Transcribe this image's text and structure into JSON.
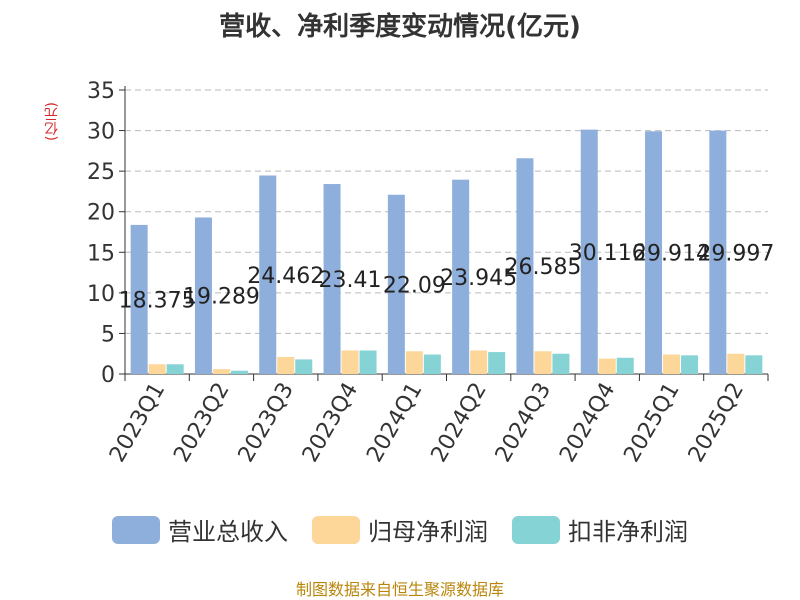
{
  "chart_data": {
    "type": "bar",
    "title": "营收、净利季度变动情况(亿元)",
    "ylabel": "(亿元)",
    "ylim": [
      0,
      35
    ],
    "yticks": [
      0,
      5,
      10,
      15,
      20,
      25,
      30,
      35
    ],
    "categories": [
      "2023Q1",
      "2023Q2",
      "2023Q3",
      "2023Q4",
      "2024Q1",
      "2024Q2",
      "2024Q3",
      "2024Q4",
      "2025Q1",
      "2025Q2"
    ],
    "series": [
      {
        "name": "营业总收入",
        "color": "#8eaedb",
        "values": [
          18.375,
          19.289,
          24.462,
          23.41,
          22.09,
          23.945,
          26.585,
          30.116,
          29.914,
          29.997
        ],
        "labels": [
          "18.375",
          "19.289",
          "24.462",
          "23.41",
          "22.09",
          "23.945",
          "26.585",
          "30.116",
          "29.914",
          "29.997"
        ]
      },
      {
        "name": "归母净利润",
        "color": "#fdd699",
        "values": [
          1.2,
          0.6,
          2.1,
          2.9,
          2.8,
          2.9,
          2.8,
          1.9,
          2.4,
          2.5
        ]
      },
      {
        "name": "扣非净利润",
        "color": "#86d3d6",
        "values": [
          1.2,
          0.4,
          1.8,
          2.9,
          2.4,
          2.7,
          2.5,
          2.0,
          2.3,
          2.3
        ]
      }
    ],
    "grid": true,
    "legend": "bottom"
  },
  "source": "制图数据来自恒生聚源数据库"
}
